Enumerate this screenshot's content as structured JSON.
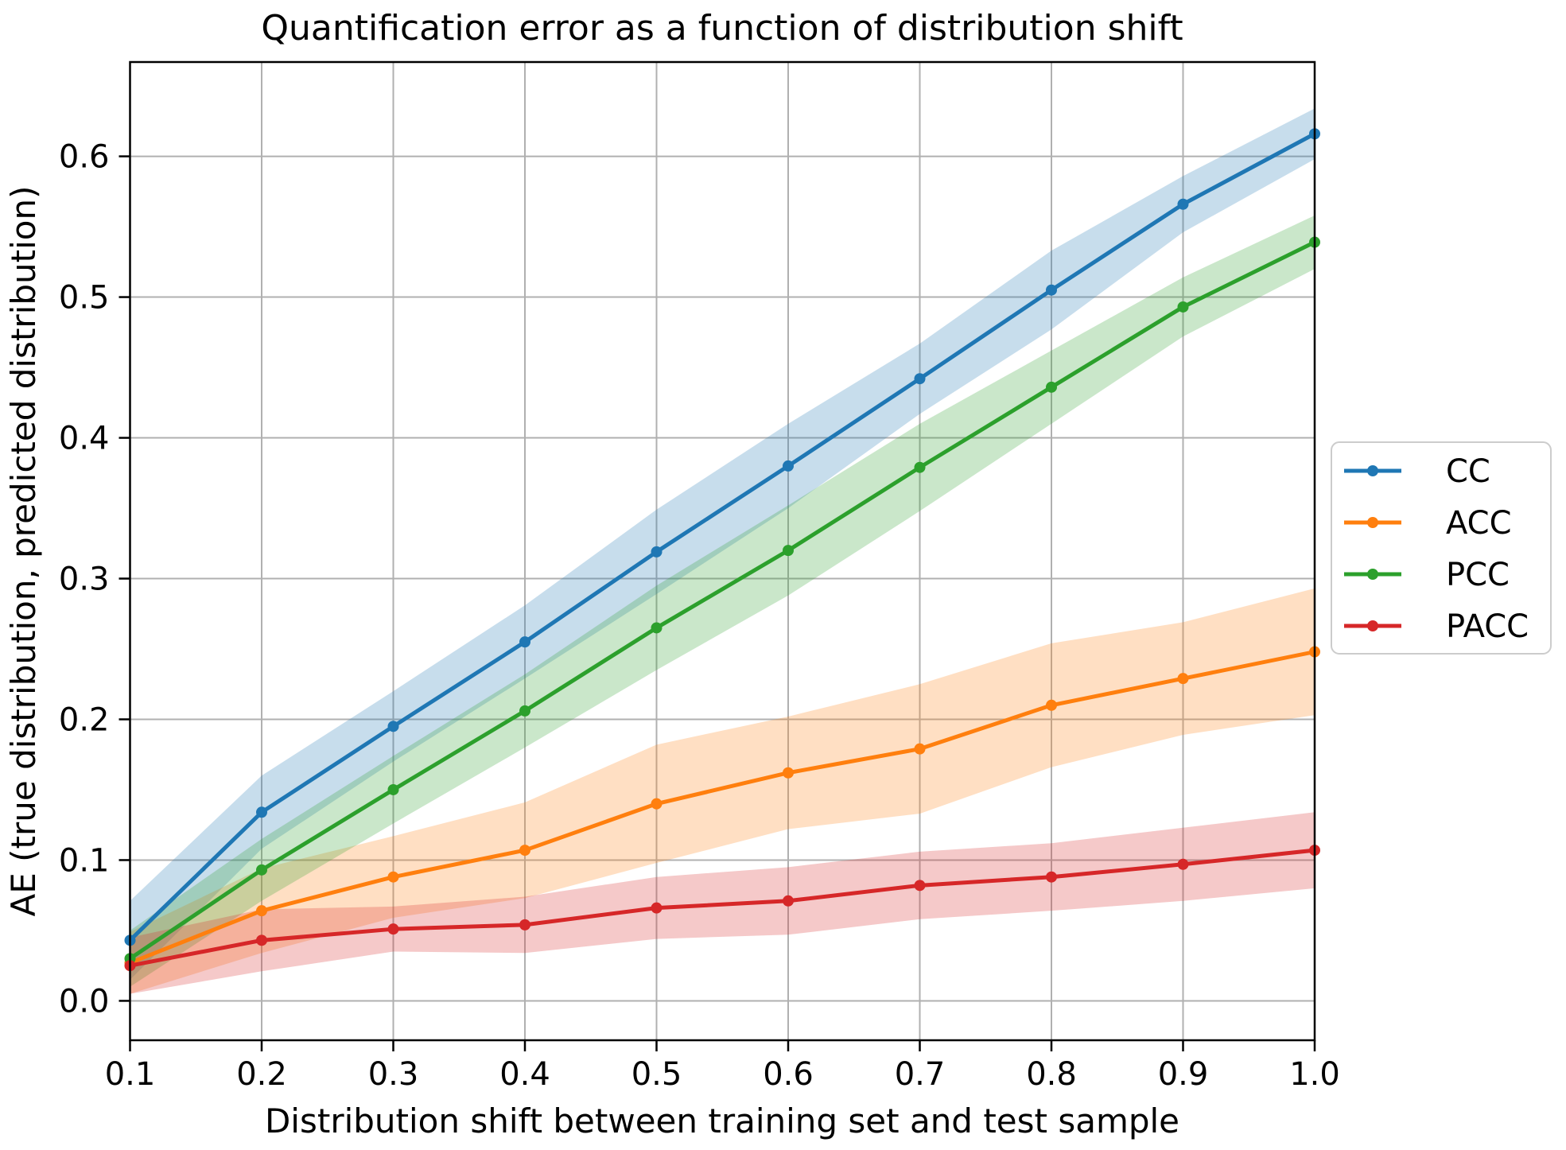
{
  "figure": {
    "background": "#ffffff",
    "spine_color": "#000000",
    "grid_color": "#b0b0b0",
    "legend_border_color": "#cccccc"
  },
  "chart_data": {
    "type": "line",
    "title": "Quantification error as a function of distribution shift",
    "xlabel": "Distribution shift between training set and test sample",
    "ylabel": "AE (true distribution, predicted distribution)",
    "x": [
      0.1,
      0.2,
      0.3,
      0.4,
      0.5,
      0.6,
      0.7,
      0.8,
      0.9,
      1.0
    ],
    "xtick_labels": [
      "0.1",
      "0.2",
      "0.3",
      "0.4",
      "0.5",
      "0.6",
      "0.7",
      "0.8",
      "0.9",
      "1.0"
    ],
    "ytick_values": [
      0.0,
      0.1,
      0.2,
      0.3,
      0.4,
      0.5,
      0.6
    ],
    "ytick_labels": [
      "0.0",
      "0.1",
      "0.2",
      "0.3",
      "0.4",
      "0.5",
      "0.6"
    ],
    "xlim": [
      0.1,
      1.0
    ],
    "ylim": [
      -0.028,
      0.667
    ],
    "grid": true,
    "band_alpha": 0.25,
    "legend_position": "outside center right",
    "series": [
      {
        "name": "CC",
        "color": "#1f77b4",
        "values": [
          0.043,
          0.134,
          0.195,
          0.255,
          0.319,
          0.38,
          0.442,
          0.505,
          0.566,
          0.616
        ],
        "band_halfwidth": [
          0.028,
          0.026,
          0.025,
          0.026,
          0.03,
          0.03,
          0.025,
          0.028,
          0.02,
          0.018
        ]
      },
      {
        "name": "ACC",
        "color": "#ff7f0e",
        "values": [
          0.027,
          0.064,
          0.088,
          0.107,
          0.14,
          0.162,
          0.179,
          0.21,
          0.229,
          0.248
        ],
        "band_halfwidth": [
          0.022,
          0.03,
          0.029,
          0.034,
          0.042,
          0.04,
          0.046,
          0.044,
          0.04,
          0.045
        ]
      },
      {
        "name": "PCC",
        "color": "#2ca02c",
        "values": [
          0.03,
          0.093,
          0.15,
          0.206,
          0.265,
          0.32,
          0.379,
          0.436,
          0.493,
          0.539
        ],
        "band_halfwidth": [
          0.02,
          0.022,
          0.024,
          0.026,
          0.03,
          0.032,
          0.031,
          0.026,
          0.021,
          0.019
        ]
      },
      {
        "name": "PACC",
        "color": "#d62728",
        "values": [
          0.025,
          0.043,
          0.051,
          0.054,
          0.066,
          0.071,
          0.082,
          0.088,
          0.097,
          0.107
        ],
        "band_halfwidth": [
          0.02,
          0.022,
          0.016,
          0.02,
          0.022,
          0.024,
          0.024,
          0.024,
          0.026,
          0.027
        ]
      }
    ]
  }
}
